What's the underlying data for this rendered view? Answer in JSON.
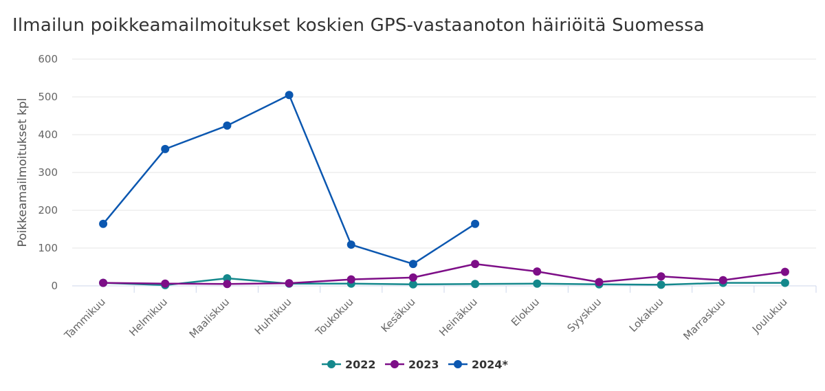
{
  "chart_data": {
    "type": "line",
    "title": "Ilmailun poikkeamailmoitukset koskien GPS-vastaanoton häiriöitä Suomessa",
    "ylabel": "Poikkeamailmoitukset kpl",
    "xlabel": "",
    "ylim": [
      0,
      600
    ],
    "yticks": [
      0,
      100,
      200,
      300,
      400,
      500,
      600
    ],
    "categories": [
      "Tammikuu",
      "Helmikuu",
      "Maaliskuu",
      "Huhtikuu",
      "Toukokuu",
      "Kesäkuu",
      "Heinäkuu",
      "Elokuu",
      "Syyskuu",
      "Lokakuu",
      "Marraskuu",
      "Joulukuu"
    ],
    "series": [
      {
        "name": "2022",
        "color": "#14888c",
        "values": [
          8,
          2,
          20,
          6,
          6,
          4,
          5,
          6,
          4,
          3,
          8,
          8
        ]
      },
      {
        "name": "2023",
        "color": "#7d0e87",
        "values": [
          8,
          6,
          5,
          7,
          17,
          22,
          58,
          38,
          10,
          25,
          15,
          37
        ]
      },
      {
        "name": "2024*",
        "color": "#0b57b0",
        "values": [
          164,
          362,
          424,
          505,
          109,
          58,
          164,
          null,
          null,
          null,
          null,
          null
        ]
      }
    ],
    "grid": true,
    "legend_position": "bottom-center"
  }
}
